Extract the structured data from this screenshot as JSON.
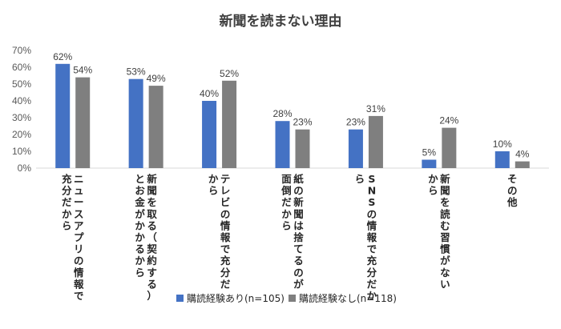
{
  "chart_data": {
    "type": "bar",
    "title": "新聞を読まない理由",
    "xlabel": "",
    "ylabel": "",
    "ylim": [
      0,
      70
    ],
    "yticks": [
      "0%",
      "10%",
      "20%",
      "30%",
      "40%",
      "50%",
      "60%",
      "70%"
    ],
    "grid": false,
    "legend_position": "bottom",
    "categories": [
      [
        "ニュースアプリの情報で",
        "充分だから"
      ],
      [
        "新聞を取る（契約する）",
        "とお金がかかるから"
      ],
      [
        "テレビの情報で充分だ",
        "から"
      ],
      [
        "紙の新聞は捨てるのが",
        "面倒だから"
      ],
      [
        "SNSの情報で充分だか",
        "ら"
      ],
      [
        "新聞を読む習慣がない",
        "から"
      ],
      [
        "その他"
      ]
    ],
    "series": [
      {
        "name": "購読経験あり(n=105)",
        "values": [
          62,
          53,
          40,
          28,
          23,
          5,
          10
        ],
        "labels": [
          "62%",
          "53%",
          "40%",
          "28%",
          "23%",
          "5%",
          "10%"
        ],
        "color": "#4472c4"
      },
      {
        "name": "購読経験なし(n=118)",
        "values": [
          54,
          49,
          52,
          23,
          31,
          24,
          4
        ],
        "labels": [
          "54%",
          "49%",
          "52%",
          "23%",
          "31%",
          "24%",
          "4%"
        ],
        "color": "#7f7f7f"
      }
    ]
  }
}
